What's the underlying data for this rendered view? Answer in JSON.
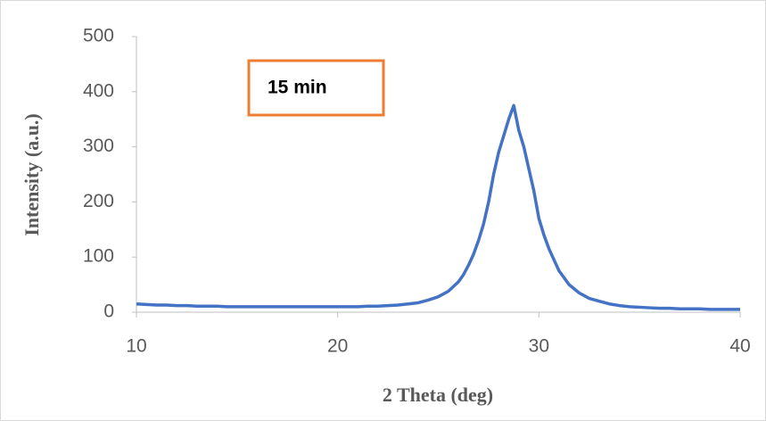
{
  "chart_data": {
    "type": "line",
    "annotation": "15 min",
    "x_label": "2 Theta (deg)",
    "y_label": "Intensity (a.u.)",
    "x": [
      10,
      10.5,
      11,
      11.5,
      12,
      12.5,
      13,
      13.5,
      14,
      14.5,
      15,
      15.5,
      16,
      16.5,
      17,
      17.5,
      18,
      18.5,
      19,
      19.5,
      20,
      20.5,
      21,
      21.5,
      22,
      22.5,
      23,
      23.5,
      24,
      24.5,
      25,
      25.5,
      26,
      26.25,
      26.5,
      26.75,
      27,
      27.25,
      27.5,
      27.75,
      28,
      28.25,
      28.5,
      28.75,
      29,
      29.25,
      29.5,
      29.75,
      30,
      30.25,
      30.5,
      30.75,
      31,
      31.5,
      32,
      32.5,
      33,
      33.5,
      34,
      34.5,
      35,
      35.5,
      36,
      36.5,
      37,
      37.5,
      38,
      38.5,
      39,
      39.5,
      40
    ],
    "series": [
      {
        "name": "15 min",
        "color": "#4472c4",
        "values": [
          15,
          14,
          13,
          13,
          12,
          12,
          11,
          11,
          11,
          10,
          10,
          10,
          10,
          10,
          10,
          10,
          10,
          10,
          10,
          10,
          10,
          10,
          10,
          11,
          11,
          12,
          13,
          15,
          17,
          22,
          28,
          38,
          55,
          68,
          85,
          105,
          130,
          160,
          200,
          250,
          290,
          320,
          350,
          375,
          330,
          300,
          260,
          220,
          170,
          140,
          115,
          95,
          75,
          50,
          35,
          25,
          20,
          15,
          12,
          10,
          9,
          8,
          7,
          7,
          6,
          6,
          6,
          5,
          5,
          5,
          5
        ]
      }
    ],
    "xlim": [
      10,
      40
    ],
    "xticks": [
      10,
      20,
      30,
      40
    ],
    "ylim": [
      0,
      500
    ],
    "yticks": [
      0,
      100,
      200,
      300,
      400,
      500
    ],
    "grid": false
  }
}
